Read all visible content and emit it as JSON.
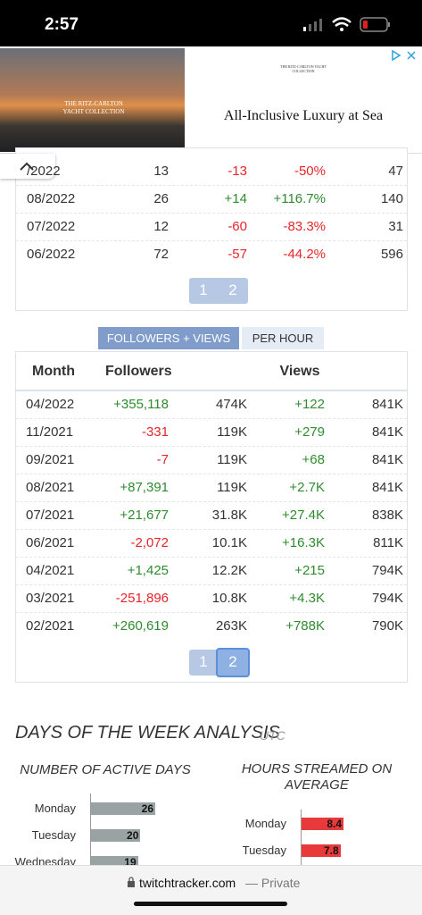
{
  "status_bar": {
    "time": "2:57"
  },
  "ad": {
    "brand": "THE RITZ-CARLTON YACHT COLLECTION",
    "headline": "All-Inclusive Luxury at Sea"
  },
  "monthly_table": {
    "rows": [
      [
        "/2022",
        "13",
        "-13",
        "-50%",
        "47"
      ],
      [
        "08/2022",
        "26",
        "+14",
        "+116.7%",
        "140"
      ],
      [
        "07/2022",
        "12",
        "-60",
        "-83.3%",
        "31"
      ],
      [
        "06/2022",
        "72",
        "-57",
        "-44.2%",
        "596"
      ]
    ],
    "pages": [
      "1",
      "2"
    ]
  },
  "tabs": [
    "FOLLOWERS + VIEWS",
    "PER HOUR"
  ],
  "followers_table": {
    "headers": [
      "Month",
      "Followers",
      "Views"
    ],
    "rows": [
      [
        "04/2022",
        "+355,118",
        "474K",
        "+122",
        "841K"
      ],
      [
        "11/2021",
        "-331",
        "119K",
        "+279",
        "841K"
      ],
      [
        "09/2021",
        "-7",
        "119K",
        "+68",
        "841K"
      ],
      [
        "08/2021",
        "+87,391",
        "119K",
        "+2.7K",
        "841K"
      ],
      [
        "07/2021",
        "+21,677",
        "31.8K",
        "+27.4K",
        "838K"
      ],
      [
        "06/2021",
        "-2,072",
        "10.1K",
        "+16.3K",
        "811K"
      ],
      [
        "04/2021",
        "+1,425",
        "12.2K",
        "+215",
        "794K"
      ],
      [
        "03/2021",
        "-251,896",
        "10.8K",
        "+4.3K",
        "794K"
      ],
      [
        "02/2021",
        "+260,619",
        "263K",
        "+788K",
        "790K"
      ]
    ],
    "pages": [
      "1",
      "2"
    ]
  },
  "days_of_week": {
    "title": "DAYS OF THE WEEK ANALYSIS",
    "timezone": "UTC",
    "active_days": {
      "title": "NUMBER OF ACTIVE DAYS",
      "days": [
        "Monday",
        "Tuesday",
        "Wednesday"
      ],
      "values": [
        26,
        20,
        19
      ]
    },
    "hours_streamed": {
      "title": "HOURS STREAMED ON AVERAGE",
      "days": [
        "Monday",
        "Tuesday"
      ],
      "values": [
        8.4,
        7.8
      ]
    }
  },
  "browser": {
    "domain": "twitchtracker.com",
    "mode": "— Private"
  }
}
